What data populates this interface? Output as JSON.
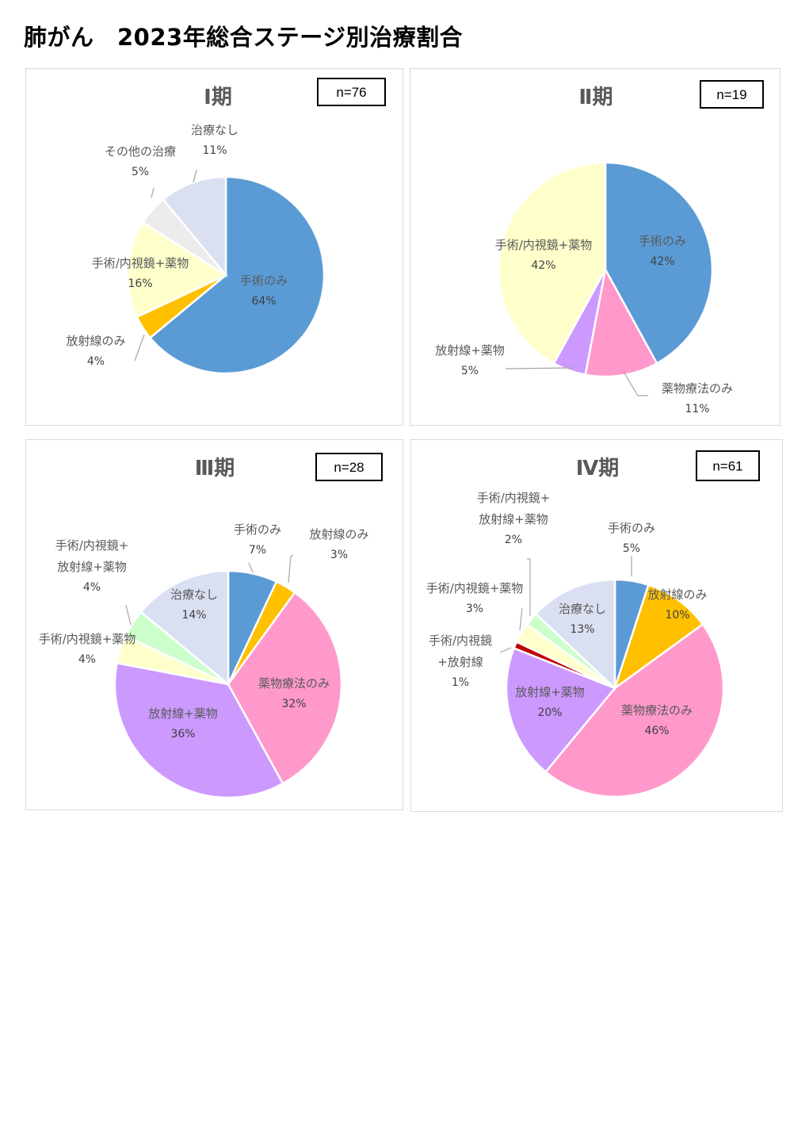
{
  "page": {
    "title": "肺がん　2023年総合ステージ別治療割合"
  },
  "chart_data": [
    {
      "type": "pie",
      "title": "Ⅰ期",
      "n_label": "n=76",
      "slices": [
        {
          "label": "手術のみ",
          "value": 64,
          "pct": "64%",
          "color": "#5b9bd5"
        },
        {
          "label": "放射線のみ",
          "value": 4,
          "pct": "4%",
          "color": "#ffc000"
        },
        {
          "label": "手術/内視鏡+薬物",
          "value": 16,
          "pct": "16%",
          "color": "#ffffcc"
        },
        {
          "label": "その他の治療",
          "value": 5,
          "pct": "5%",
          "color": "#ececec"
        },
        {
          "label": "治療なし",
          "value": 11,
          "pct": "11%",
          "color": "#dae0f2"
        }
      ]
    },
    {
      "type": "pie",
      "title": "Ⅱ期",
      "n_label": "n=19",
      "slices": [
        {
          "label": "手術のみ",
          "value": 42,
          "pct": "42%",
          "color": "#5b9bd5"
        },
        {
          "label": "薬物療法のみ",
          "value": 11,
          "pct": "11%",
          "color": "#ff99cc"
        },
        {
          "label": "放射線+薬物",
          "value": 5,
          "pct": "5%",
          "color": "#cc99ff"
        },
        {
          "label": "手術/内視鏡+薬物",
          "value": 42,
          "pct": "42%",
          "color": "#ffffcc"
        }
      ]
    },
    {
      "type": "pie",
      "title": "Ⅲ期",
      "n_label": "n=28",
      "slices": [
        {
          "label": "手術のみ",
          "value": 7,
          "pct": "7%",
          "color": "#5b9bd5"
        },
        {
          "label": "放射線のみ",
          "value": 3,
          "pct": "3%",
          "color": "#ffc000"
        },
        {
          "label": "薬物療法のみ",
          "value": 32,
          "pct": "32%",
          "color": "#ff99cc"
        },
        {
          "label": "放射線+薬物",
          "value": 36,
          "pct": "36%",
          "color": "#cc99ff"
        },
        {
          "label": "手術/内視鏡+薬物",
          "value": 4,
          "pct": "4%",
          "color": "#ffffcc"
        },
        {
          "label": "手術/内視鏡+\n放射線+薬物",
          "value": 4,
          "pct": "4%",
          "color": "#ccffcc"
        },
        {
          "label": "治療なし",
          "value": 14,
          "pct": "14%",
          "color": "#dae0f2"
        }
      ]
    },
    {
      "type": "pie",
      "title": "Ⅳ期",
      "n_label": "n=61",
      "slices": [
        {
          "label": "手術のみ",
          "value": 5,
          "pct": "5%",
          "color": "#5b9bd5"
        },
        {
          "label": "放射線のみ",
          "value": 10,
          "pct": "10%",
          "color": "#ffc000"
        },
        {
          "label": "薬物療法のみ",
          "value": 46,
          "pct": "46%",
          "color": "#ff99cc"
        },
        {
          "label": "放射線+薬物",
          "value": 20,
          "pct": "20%",
          "color": "#cc99ff"
        },
        {
          "label": "手術/内視鏡\n+放射線",
          "value": 1,
          "pct": "1%",
          "color": "#c00000"
        },
        {
          "label": "手術/内視鏡+薬物",
          "value": 3,
          "pct": "3%",
          "color": "#ffffcc"
        },
        {
          "label": "手術/内視鏡+\n放射線+薬物",
          "value": 2,
          "pct": "2%",
          "color": "#ccffcc"
        },
        {
          "label": "治療なし",
          "value": 13,
          "pct": "13%",
          "color": "#dae0f2"
        }
      ]
    }
  ]
}
